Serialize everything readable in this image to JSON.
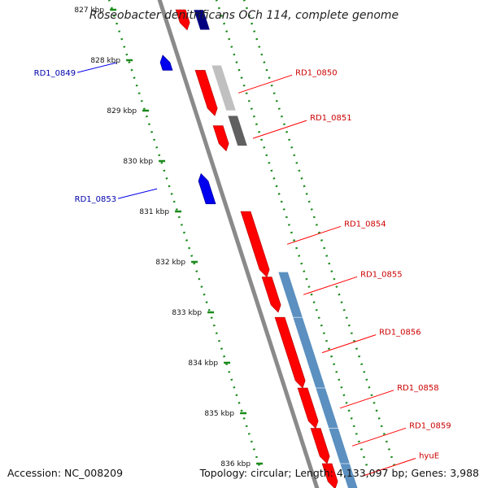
{
  "title": "Roseobacter denitrificans OCh 114, complete genome",
  "footer": {
    "accession": "Accession: NC_008209",
    "summary": "Topology: circular; Length: 4,133,097 bp; Genes: 3,988"
  },
  "colors": {
    "forward_gene": "#ff0000",
    "reverse_gene": "#0000ee",
    "forward_label": "#cc0000",
    "reverse_label": "#0000aa",
    "backbone": "#8a8a8a",
    "tick": "#1a8a1a",
    "feature_light": "#c0c0c0",
    "feature_dark": "#606060",
    "feature_navy": "#000080",
    "feature_steel": "#5b90c0"
  },
  "scale_ticks": [
    {
      "label": "827 kbp",
      "kbp": 827
    },
    {
      "label": "828 kbp",
      "kbp": 828
    },
    {
      "label": "829 kbp",
      "kbp": 829
    },
    {
      "label": "830 kbp",
      "kbp": 830
    },
    {
      "label": "831 kbp",
      "kbp": 831
    },
    {
      "label": "832 kbp",
      "kbp": 832
    },
    {
      "label": "833 kbp",
      "kbp": 833
    },
    {
      "label": "834 kbp",
      "kbp": 834
    },
    {
      "label": "835 kbp",
      "kbp": 835
    },
    {
      "label": "836 kbp",
      "kbp": 836
    }
  ],
  "genes_forward": [
    {
      "label": "",
      "start_kbp": 827.0,
      "end_kbp": 827.4
    },
    {
      "label": "RD1_0850",
      "start_kbp": 828.2,
      "end_kbp": 829.1
    },
    {
      "label": "RD1_0851",
      "start_kbp": 829.3,
      "end_kbp": 829.8
    },
    {
      "label": "RD1_0854",
      "start_kbp": 831.0,
      "end_kbp": 832.3
    },
    {
      "label": "RD1_0855",
      "start_kbp": 832.3,
      "end_kbp": 833.0
    },
    {
      "label": "RD1_0856",
      "start_kbp": 833.1,
      "end_kbp": 834.5
    },
    {
      "label": "RD1_0858",
      "start_kbp": 834.5,
      "end_kbp": 835.3
    },
    {
      "label": "RD1_0859",
      "start_kbp": 835.3,
      "end_kbp": 836.0
    },
    {
      "label": "hyuE",
      "start_kbp": 836.0,
      "end_kbp": 836.5
    }
  ],
  "genes_reverse": [
    {
      "label": "RD1_0849",
      "start_kbp": 827.9,
      "end_kbp": 828.2
    },
    {
      "label": "RD1_0853",
      "start_kbp": 830.25,
      "end_kbp": 830.85
    }
  ],
  "features": [
    {
      "tone": "navy",
      "start_kbp": 827.0,
      "end_kbp": 827.4
    },
    {
      "tone": "light",
      "start_kbp": 828.1,
      "end_kbp": 829.0
    },
    {
      "tone": "dark",
      "start_kbp": 829.1,
      "end_kbp": 829.7
    },
    {
      "tone": "steel",
      "start_kbp": 832.2,
      "end_kbp": 836.5
    }
  ]
}
